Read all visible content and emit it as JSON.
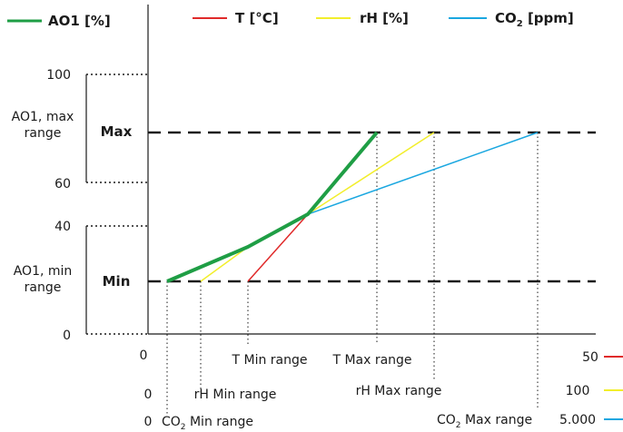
{
  "legend": {
    "ao1": "AO1 [%]",
    "t": "T [°C]",
    "rh": "rH [%]",
    "co2_main": "CO",
    "co2_sub": "2",
    "co2_unit": " [ppm]"
  },
  "colors": {
    "ao1": "#1f9e45",
    "t": "#e02a2a",
    "rh": "#f2ee2c",
    "co2": "#1aa7e0",
    "dashed": "#1a1a1a",
    "axis": "#1a1a1a"
  },
  "y_ticks": {
    "t100": "100",
    "t60": "60",
    "t40": "40",
    "t0": "0"
  },
  "y_labels": {
    "max_range_line1": "AO1, max",
    "max_range_line2": "range",
    "min_range_line1": "AO1, min",
    "min_range_line2": "range",
    "max": "Max",
    "min": "Min"
  },
  "x_labels": {
    "origin": "0",
    "t_min": "T Min range",
    "t_max": "T Max range",
    "t_end": "50",
    "rh_zero": "0",
    "rh_min": "rH Min range",
    "rh_max": "rH Max range",
    "rh_end": "100",
    "co2_zero": "0",
    "co2_min_main": "CO",
    "co2_min_sub": "2",
    "co2_min_rest": " Min range",
    "co2_max_main": "CO",
    "co2_max_sub": "2",
    "co2_max_rest": " Max range",
    "co2_end": "5.000"
  }
}
